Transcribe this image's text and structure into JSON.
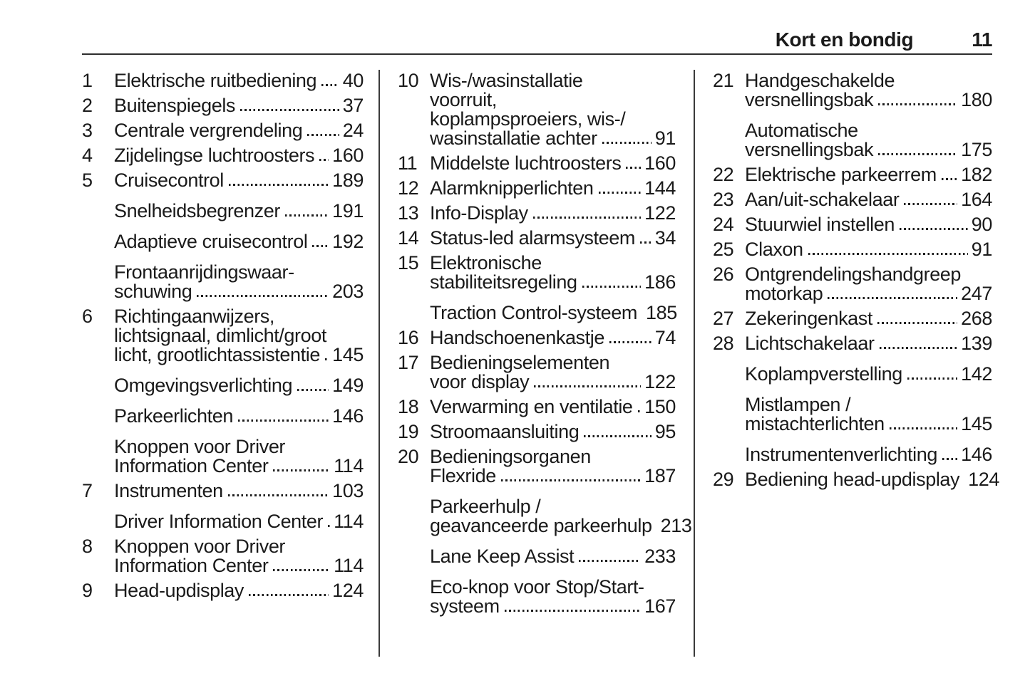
{
  "header": {
    "title": "Kort en bondig",
    "page_number": "11"
  },
  "colors": {
    "text": "#1a1a1a",
    "header_rule": "#2e2e2e",
    "column_separator": "#3a3a3a"
  },
  "toc": {
    "columns": [
      {
        "id": "col1",
        "entries": [
          {
            "num": "1",
            "lines": [
              "Elektrische ruitbediening"
            ],
            "page": "40",
            "leader": "dots"
          },
          {
            "num": "2",
            "lines": [
              "Buitenspiegels"
            ],
            "page": "37",
            "leader": "dots"
          },
          {
            "num": "3",
            "lines": [
              "Centrale vergrendeling"
            ],
            "page": "24",
            "leader": "dots"
          },
          {
            "num": "4",
            "lines": [
              "Zijdelingse luchtroosters"
            ],
            "page": "160",
            "leader": "dots"
          },
          {
            "num": "5",
            "lines": [
              "Cruisecontrol"
            ],
            "page": "189",
            "leader": "dots"
          },
          {
            "num": "",
            "lines": [
              "Snelheidsbegrenzer"
            ],
            "page": "191",
            "leader": "dots"
          },
          {
            "num": "",
            "lines": [
              "Adaptieve cruisecontrol"
            ],
            "page": "192",
            "leader": "dots"
          },
          {
            "num": "",
            "lines": [
              "Frontaanrijdingswaar-",
              "schuwing"
            ],
            "page": "203",
            "leader": "dots"
          },
          {
            "num": "6",
            "lines": [
              "Richtingaanwijzers,",
              "lichtsignaal, dimlicht/groot",
              "licht, grootlichtassistentie"
            ],
            "page": "145",
            "leader": "dots"
          },
          {
            "num": "",
            "lines": [
              "Omgevingsverlichting"
            ],
            "page": "149",
            "leader": "dots"
          },
          {
            "num": "",
            "lines": [
              "Parkeerlichten"
            ],
            "page": "146",
            "leader": "dots"
          },
          {
            "num": "",
            "lines": [
              "Knoppen voor Driver",
              "Information Center"
            ],
            "page": "114",
            "leader": "dots"
          },
          {
            "num": "7",
            "lines": [
              "Instrumenten"
            ],
            "page": "103",
            "leader": "dots"
          },
          {
            "num": "",
            "lines": [
              "Driver Information Center"
            ],
            "page": "114",
            "leader": "dots"
          },
          {
            "num": "8",
            "lines": [
              "Knoppen voor Driver",
              "Information Center"
            ],
            "page": "114",
            "leader": "dots"
          },
          {
            "num": "9",
            "lines": [
              "Head-updisplay"
            ],
            "page": "124",
            "leader": "dots"
          }
        ]
      },
      {
        "id": "col2",
        "entries": [
          {
            "num": "10",
            "lines": [
              "Wis-/wasinstallatie",
              "voorruit,",
              "koplampsproeiers, wis-/",
              "wasinstallatie achter"
            ],
            "page": "91",
            "leader": "dots"
          },
          {
            "num": "11",
            "lines": [
              "Middelste luchtroosters"
            ],
            "page": "160",
            "leader": "dots"
          },
          {
            "num": "12",
            "lines": [
              "Alarmknipperlichten"
            ],
            "page": "144",
            "leader": "dots"
          },
          {
            "num": "13",
            "lines": [
              "Info-Display"
            ],
            "page": "122",
            "leader": "dots"
          },
          {
            "num": "14",
            "lines": [
              "Status-led alarmsysteem"
            ],
            "page": "34",
            "leader": "dots"
          },
          {
            "num": "15",
            "lines": [
              "Elektronische",
              "stabiliteitsregeling"
            ],
            "page": "186",
            "leader": "dots"
          },
          {
            "num": "",
            "lines": [
              "Traction Control-systeem"
            ],
            "page": "185",
            "leader": "dots"
          },
          {
            "num": "16",
            "lines": [
              "Handschoenenkastje"
            ],
            "page": "74",
            "leader": "dots"
          },
          {
            "num": "17",
            "lines": [
              "Bedieningselementen",
              "voor display"
            ],
            "page": "122",
            "leader": "dots"
          },
          {
            "num": "18",
            "lines": [
              "Verwarming en ventilatie"
            ],
            "page": "150",
            "leader": "dots"
          },
          {
            "num": "19",
            "lines": [
              "Stroomaansluiting"
            ],
            "page": "95",
            "leader": "dots"
          },
          {
            "num": "20",
            "lines": [
              "Bedieningsorganen",
              "Flexride"
            ],
            "page": "187",
            "leader": "dots"
          },
          {
            "num": "",
            "lines": [
              "Parkeerhulp /",
              "geavanceerde parkeerhulp"
            ],
            "page": "213",
            "leader": "none"
          },
          {
            "num": "",
            "lines": [
              "Lane Keep Assist"
            ],
            "page": "233",
            "leader": "dots"
          },
          {
            "num": "",
            "lines": [
              "Eco-knop voor Stop/Start-",
              "systeem"
            ],
            "page": "167",
            "leader": "dots"
          }
        ]
      },
      {
        "id": "col3",
        "entries": [
          {
            "num": "21",
            "lines": [
              "Handgeschakelde",
              "versnellingsbak"
            ],
            "page": "180",
            "leader": "dots"
          },
          {
            "num": "",
            "lines": [
              "Automatische",
              "versnellingsbak"
            ],
            "page": "175",
            "leader": "dots"
          },
          {
            "num": "22",
            "lines": [
              "Elektrische parkeerrem"
            ],
            "page": "182",
            "leader": "dots"
          },
          {
            "num": "23",
            "lines": [
              "Aan/uit-schakelaar"
            ],
            "page": "164",
            "leader": "dots"
          },
          {
            "num": "24",
            "lines": [
              "Stuurwiel instellen"
            ],
            "page": "90",
            "leader": "dots"
          },
          {
            "num": "25",
            "lines": [
              "Claxon"
            ],
            "page": "91",
            "leader": "dots"
          },
          {
            "num": "26",
            "lines": [
              "Ontgrendelingshandgreep",
              "motorkap"
            ],
            "page": "247",
            "leader": "dots"
          },
          {
            "num": "27",
            "lines": [
              "Zekeringenkast"
            ],
            "page": "268",
            "leader": "dots"
          },
          {
            "num": "28",
            "lines": [
              "Lichtschakelaar"
            ],
            "page": "139",
            "leader": "dots"
          },
          {
            "num": "",
            "lines": [
              "Koplampverstelling"
            ],
            "page": "142",
            "leader": "dots"
          },
          {
            "num": "",
            "lines": [
              "Mistlampen /",
              "mistachterlichten"
            ],
            "page": "145",
            "leader": "dots"
          },
          {
            "num": "",
            "lines": [
              "Instrumentenverlichting"
            ],
            "page": "146",
            "leader": "dots"
          },
          {
            "num": "29",
            "lines": [
              "Bediening head-updisplay"
            ],
            "page": "124",
            "leader": "sparse"
          }
        ]
      }
    ]
  }
}
